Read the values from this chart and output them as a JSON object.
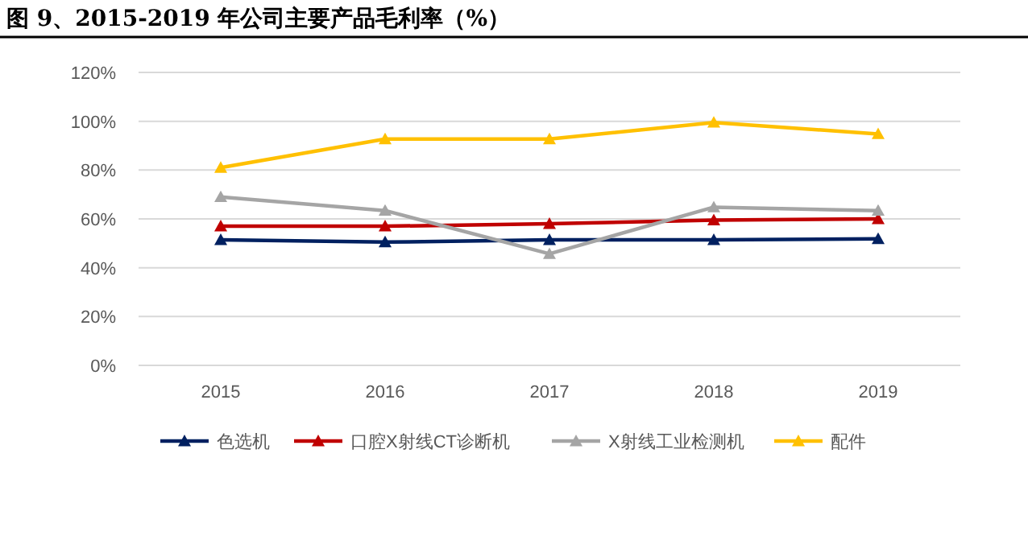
{
  "chart_data": {
    "type": "line",
    "title": "图 9、2015-2019 年公司主要产品毛利率（%）",
    "categories": [
      "2015",
      "2016",
      "2017",
      "2018",
      "2019"
    ],
    "series": [
      {
        "name": "色选机",
        "color": "#002060",
        "values": [
          51.4,
          50.5,
          51.4,
          51.4,
          51.8
        ]
      },
      {
        "name": "口腔X射线CT诊断机",
        "color": "#c00000",
        "values": [
          57,
          57,
          58,
          59.5,
          60
        ]
      },
      {
        "name": "X射线工业检测机",
        "color": "#a5a5a5",
        "values": [
          69,
          63.4,
          45.7,
          64.8,
          63.4
        ]
      },
      {
        "name": "配件",
        "color": "#ffc000",
        "values": [
          81,
          92.7,
          92.7,
          99.5,
          94.8
        ]
      }
    ],
    "ylim": [
      0,
      120
    ],
    "yticks": [
      {
        "value": 0,
        "label": "0%"
      },
      {
        "value": 20,
        "label": "20%"
      },
      {
        "value": 40,
        "label": "40%"
      },
      {
        "value": 60,
        "label": "60%"
      },
      {
        "value": 80,
        "label": "80%"
      },
      {
        "value": 100,
        "label": "100%"
      },
      {
        "value": 120,
        "label": "120%"
      }
    ],
    "grid": "y",
    "legend": "bottom",
    "marker": "triangle",
    "line_style": "solid"
  }
}
